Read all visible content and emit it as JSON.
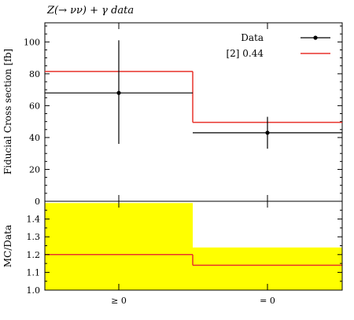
{
  "chart_data": {
    "type": "line",
    "title": "Z(→ νν) + γ data",
    "categories": [
      "≥ 0",
      "= 0"
    ],
    "main": {
      "ylabel": "Fiducial Cross section [fb]",
      "ylim": [
        0,
        112
      ],
      "yticks": [
        0,
        20,
        40,
        60,
        80,
        100
      ],
      "data": {
        "name": "Data",
        "values": [
          68,
          43
        ],
        "err_low": [
          32,
          10
        ],
        "err_high": [
          33,
          10
        ]
      },
      "mc": {
        "name": "[2] 0.44",
        "values": [
          81.5,
          49.5
        ]
      }
    },
    "ratio": {
      "ylabel": "MC/Data",
      "ylim": [
        1.0,
        1.5
      ],
      "yticks": [
        1.0,
        1.1,
        1.2,
        1.3,
        1.4
      ],
      "values": [
        1.2,
        1.14
      ],
      "band_high": [
        1.49,
        1.24
      ]
    },
    "colors": {
      "data": "#000000",
      "mc": "#e8322b",
      "band": "#ffff00"
    },
    "legend_position": "top-right"
  }
}
